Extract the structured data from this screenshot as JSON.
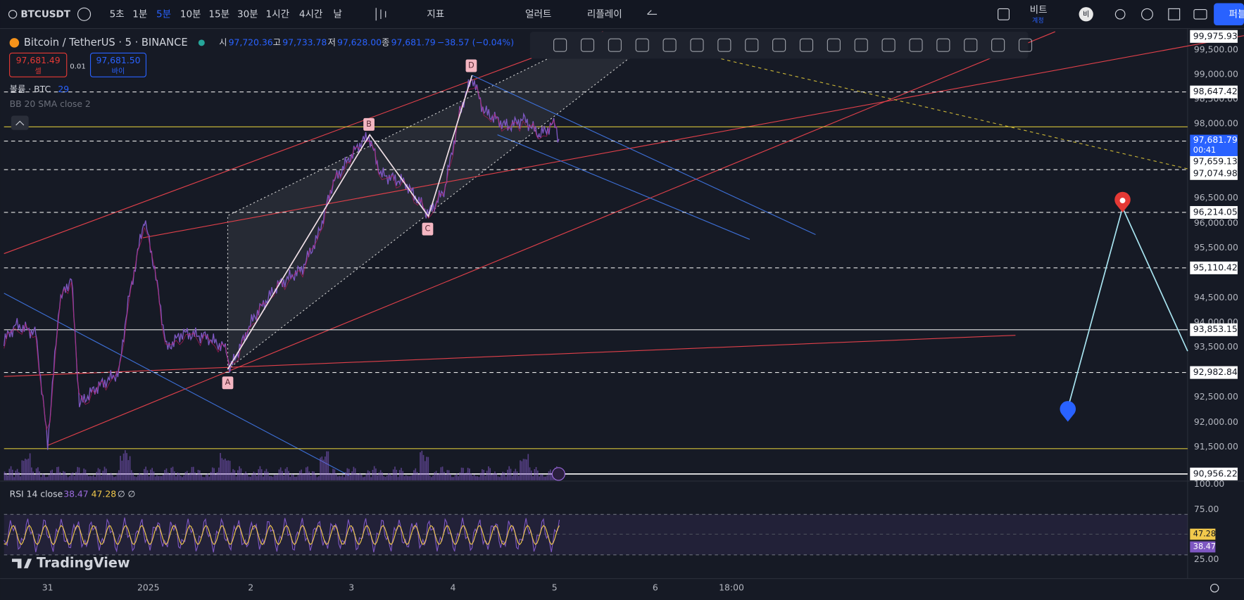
{
  "toolbar": {
    "symbol": "BTCUSDT",
    "intervals": [
      "5초",
      "1분",
      "5분",
      "10분",
      "15분",
      "30분",
      "1시간",
      "4시간",
      "날"
    ],
    "indicators": "지표",
    "alert": "얼러트",
    "replay": "리플레이",
    "account": "비트",
    "account_sub": "계정",
    "avatar": "비",
    "publish": "퍼블"
  },
  "legend": {
    "title": "Bitcoin / TetherUS · 5 · BINANCE",
    "ohlc": [
      {
        "label": "시",
        "value": "97,720.36"
      },
      {
        "label": "고",
        "value": "97,733.78"
      },
      {
        "label": "저",
        "value": "97,628.00"
      },
      {
        "label": "종",
        "value": "97,681.79"
      }
    ],
    "change": "−38.57 (−0.04%)"
  },
  "trade": {
    "sell_price": "97,681.49",
    "sell": "셀",
    "qty": "0.01",
    "buy_price": "97,681.50",
    "buy": "바이"
  },
  "indicators": {
    "volume": "볼륨 · BTC",
    "volume_value": "29",
    "bb": "BB 20 SMA close 2"
  },
  "pattern_labels": [
    "A",
    "B",
    "C",
    "D"
  ],
  "price_axis": {
    "ticks": [
      "99,500.00",
      "99,000.00",
      "98,500.00",
      "98,000.00",
      "96,500.00",
      "96,000.00",
      "95,500.00",
      "94,500.00",
      "94,000.00",
      "93,500.00",
      "92,500.00",
      "92,000.00",
      "91,500.00"
    ],
    "levels": [
      "99,975.93",
      "98,647.42",
      "97,659.13",
      "97,074.98",
      "96,214.05",
      "95,110.42",
      "93,853.15",
      "92,982.84",
      "90,956.22"
    ],
    "current": "97,681.79",
    "countdown": "00:41"
  },
  "rsi": {
    "label": "RSI 14 close",
    "value": "38.47",
    "ma": "47.28",
    "extra": "∅ ∅",
    "ticks": [
      "100.00",
      "75.00",
      "25.00"
    ]
  },
  "time_axis": [
    "31",
    "2025",
    "2",
    "3",
    "4",
    "5",
    "6",
    "18:00"
  ],
  "watermark": "TradingView"
}
